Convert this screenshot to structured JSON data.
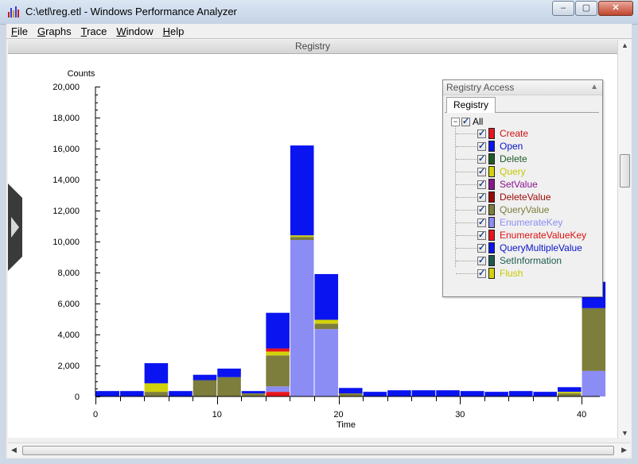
{
  "window": {
    "title": "C:\\etl\\reg.etl - Windows Performance Analyzer",
    "minimize_glyph": "–",
    "maximize_glyph": "▢",
    "close_glyph": "✕"
  },
  "menu": [
    {
      "mnemonic": "F",
      "rest": "ile"
    },
    {
      "mnemonic": "G",
      "rest": "raphs"
    },
    {
      "mnemonic": "T",
      "rest": "race"
    },
    {
      "mnemonic": "W",
      "rest": "indow"
    },
    {
      "mnemonic": "H",
      "rest": "elp"
    }
  ],
  "graph": {
    "header": "Registry"
  },
  "legend": {
    "title": "Registry Access",
    "tab": "Registry",
    "root_label": "All",
    "items": [
      {
        "label": "Create",
        "color": "#e8141c",
        "text_color": "#cc1111"
      },
      {
        "label": "Open",
        "color": "#0a14f0",
        "text_color": "#0a14c8"
      },
      {
        "label": "Delete",
        "color": "#1e5a28",
        "text_color": "#1e5a28"
      },
      {
        "label": "Query",
        "color": "#d2d20a",
        "text_color": "#c8c800"
      },
      {
        "label": "SetValue",
        "color": "#8c148c",
        "text_color": "#8c148c"
      },
      {
        "label": "DeleteValue",
        "color": "#9a0a0a",
        "text_color": "#9a0a0a"
      },
      {
        "label": "QueryValue",
        "color": "#7d7d3c",
        "text_color": "#7d7d3c"
      },
      {
        "label": "EnumerateKey",
        "color": "#8c8cf5",
        "text_color": "#8c8cf5"
      },
      {
        "label": "EnumerateValueKey",
        "color": "#e8141c",
        "text_color": "#dd1111"
      },
      {
        "label": "QueryMultipleValue",
        "color": "#0a14f0",
        "text_color": "#0a14c8"
      },
      {
        "label": "SetInformation",
        "color": "#1e5a50",
        "text_color": "#1e5a50"
      },
      {
        "label": "Flush",
        "color": "#d2d20a",
        "text_color": "#c8c800"
      }
    ]
  },
  "chart_data": {
    "type": "bar",
    "title": "",
    "xlabel": "Time",
    "ylabel": "Counts",
    "ylim": [
      0,
      20000
    ],
    "xlim": [
      0,
      41.5
    ],
    "y_ticks": [
      "0",
      "2,000",
      "4,000",
      "6,000",
      "8,000",
      "10,000",
      "12,000",
      "14,000",
      "16,000",
      "18,000",
      "20,000"
    ],
    "x_ticks": [
      "0",
      "10",
      "20",
      "30",
      "40"
    ],
    "bin_width": 2,
    "bins": [
      {
        "x": 0,
        "EnumerateKey": 0,
        "QueryValue": 0,
        "Query": 0,
        "Open": 350
      },
      {
        "x": 2,
        "EnumerateKey": 0,
        "QueryValue": 0,
        "Query": 0,
        "Open": 350
      },
      {
        "x": 4,
        "EnumerateKey": 0,
        "QueryValue": 300,
        "Query": 550,
        "Open": 1300
      },
      {
        "x": 6,
        "EnumerateKey": 0,
        "QueryValue": 0,
        "Query": 0,
        "Open": 350
      },
      {
        "x": 8,
        "EnumerateKey": 0,
        "QueryValue": 1050,
        "Query": 0,
        "Open": 350
      },
      {
        "x": 10,
        "EnumerateKey": 0,
        "QueryValue": 1250,
        "Query": 0,
        "Open": 550
      },
      {
        "x": 12,
        "EnumerateKey": 0,
        "QueryValue": 200,
        "Query": 0,
        "Open": 150
      },
      {
        "x": 14,
        "Create": 300,
        "EnumerateKey": 350,
        "QueryValue": 2000,
        "Query": 250,
        "Open": 2300,
        "EnumerateValueKey": 200
      },
      {
        "x": 16,
        "EnumerateKey": 10100,
        "QueryValue": 200,
        "Query": 100,
        "Open": 5800
      },
      {
        "x": 18,
        "EnumerateKey": 4350,
        "QueryValue": 350,
        "Query": 250,
        "Open": 2950
      },
      {
        "x": 20,
        "EnumerateKey": 0,
        "QueryValue": 200,
        "Query": 0,
        "Open": 350
      },
      {
        "x": 22,
        "EnumerateKey": 0,
        "QueryValue": 0,
        "Query": 0,
        "Open": 300
      },
      {
        "x": 24,
        "EnumerateKey": 0,
        "QueryValue": 0,
        "Query": 0,
        "Open": 400
      },
      {
        "x": 26,
        "EnumerateKey": 0,
        "QueryValue": 0,
        "Query": 0,
        "Open": 400
      },
      {
        "x": 28,
        "EnumerateKey": 0,
        "QueryValue": 0,
        "Query": 0,
        "Open": 400
      },
      {
        "x": 30,
        "EnumerateKey": 0,
        "QueryValue": 0,
        "Query": 0,
        "Open": 350
      },
      {
        "x": 32,
        "EnumerateKey": 0,
        "QueryValue": 0,
        "Query": 0,
        "Open": 300
      },
      {
        "x": 34,
        "EnumerateKey": 0,
        "QueryValue": 0,
        "Query": 0,
        "Open": 350
      },
      {
        "x": 36,
        "EnumerateKey": 0,
        "QueryValue": 0,
        "Query": 0,
        "Open": 300
      },
      {
        "x": 38,
        "EnumerateKey": 0,
        "QueryValue": 200,
        "Query": 100,
        "Open": 300
      },
      {
        "x": 40,
        "EnumerateKey": 1650,
        "QueryValue": 4050,
        "Query": 0,
        "Open": 1700
      }
    ],
    "series_order": [
      "Create",
      "EnumerateKey",
      "QueryValue",
      "Query",
      "EnumerateValueKey",
      "Open"
    ],
    "series_colors": {
      "Create": "#e8141c",
      "EnumerateKey": "#8c8cf5",
      "QueryValue": "#7d7d3c",
      "Query": "#d2d20a",
      "EnumerateValueKey": "#e8141c",
      "Open": "#0a14f0"
    },
    "grid": false,
    "legend_position": "top-right"
  }
}
